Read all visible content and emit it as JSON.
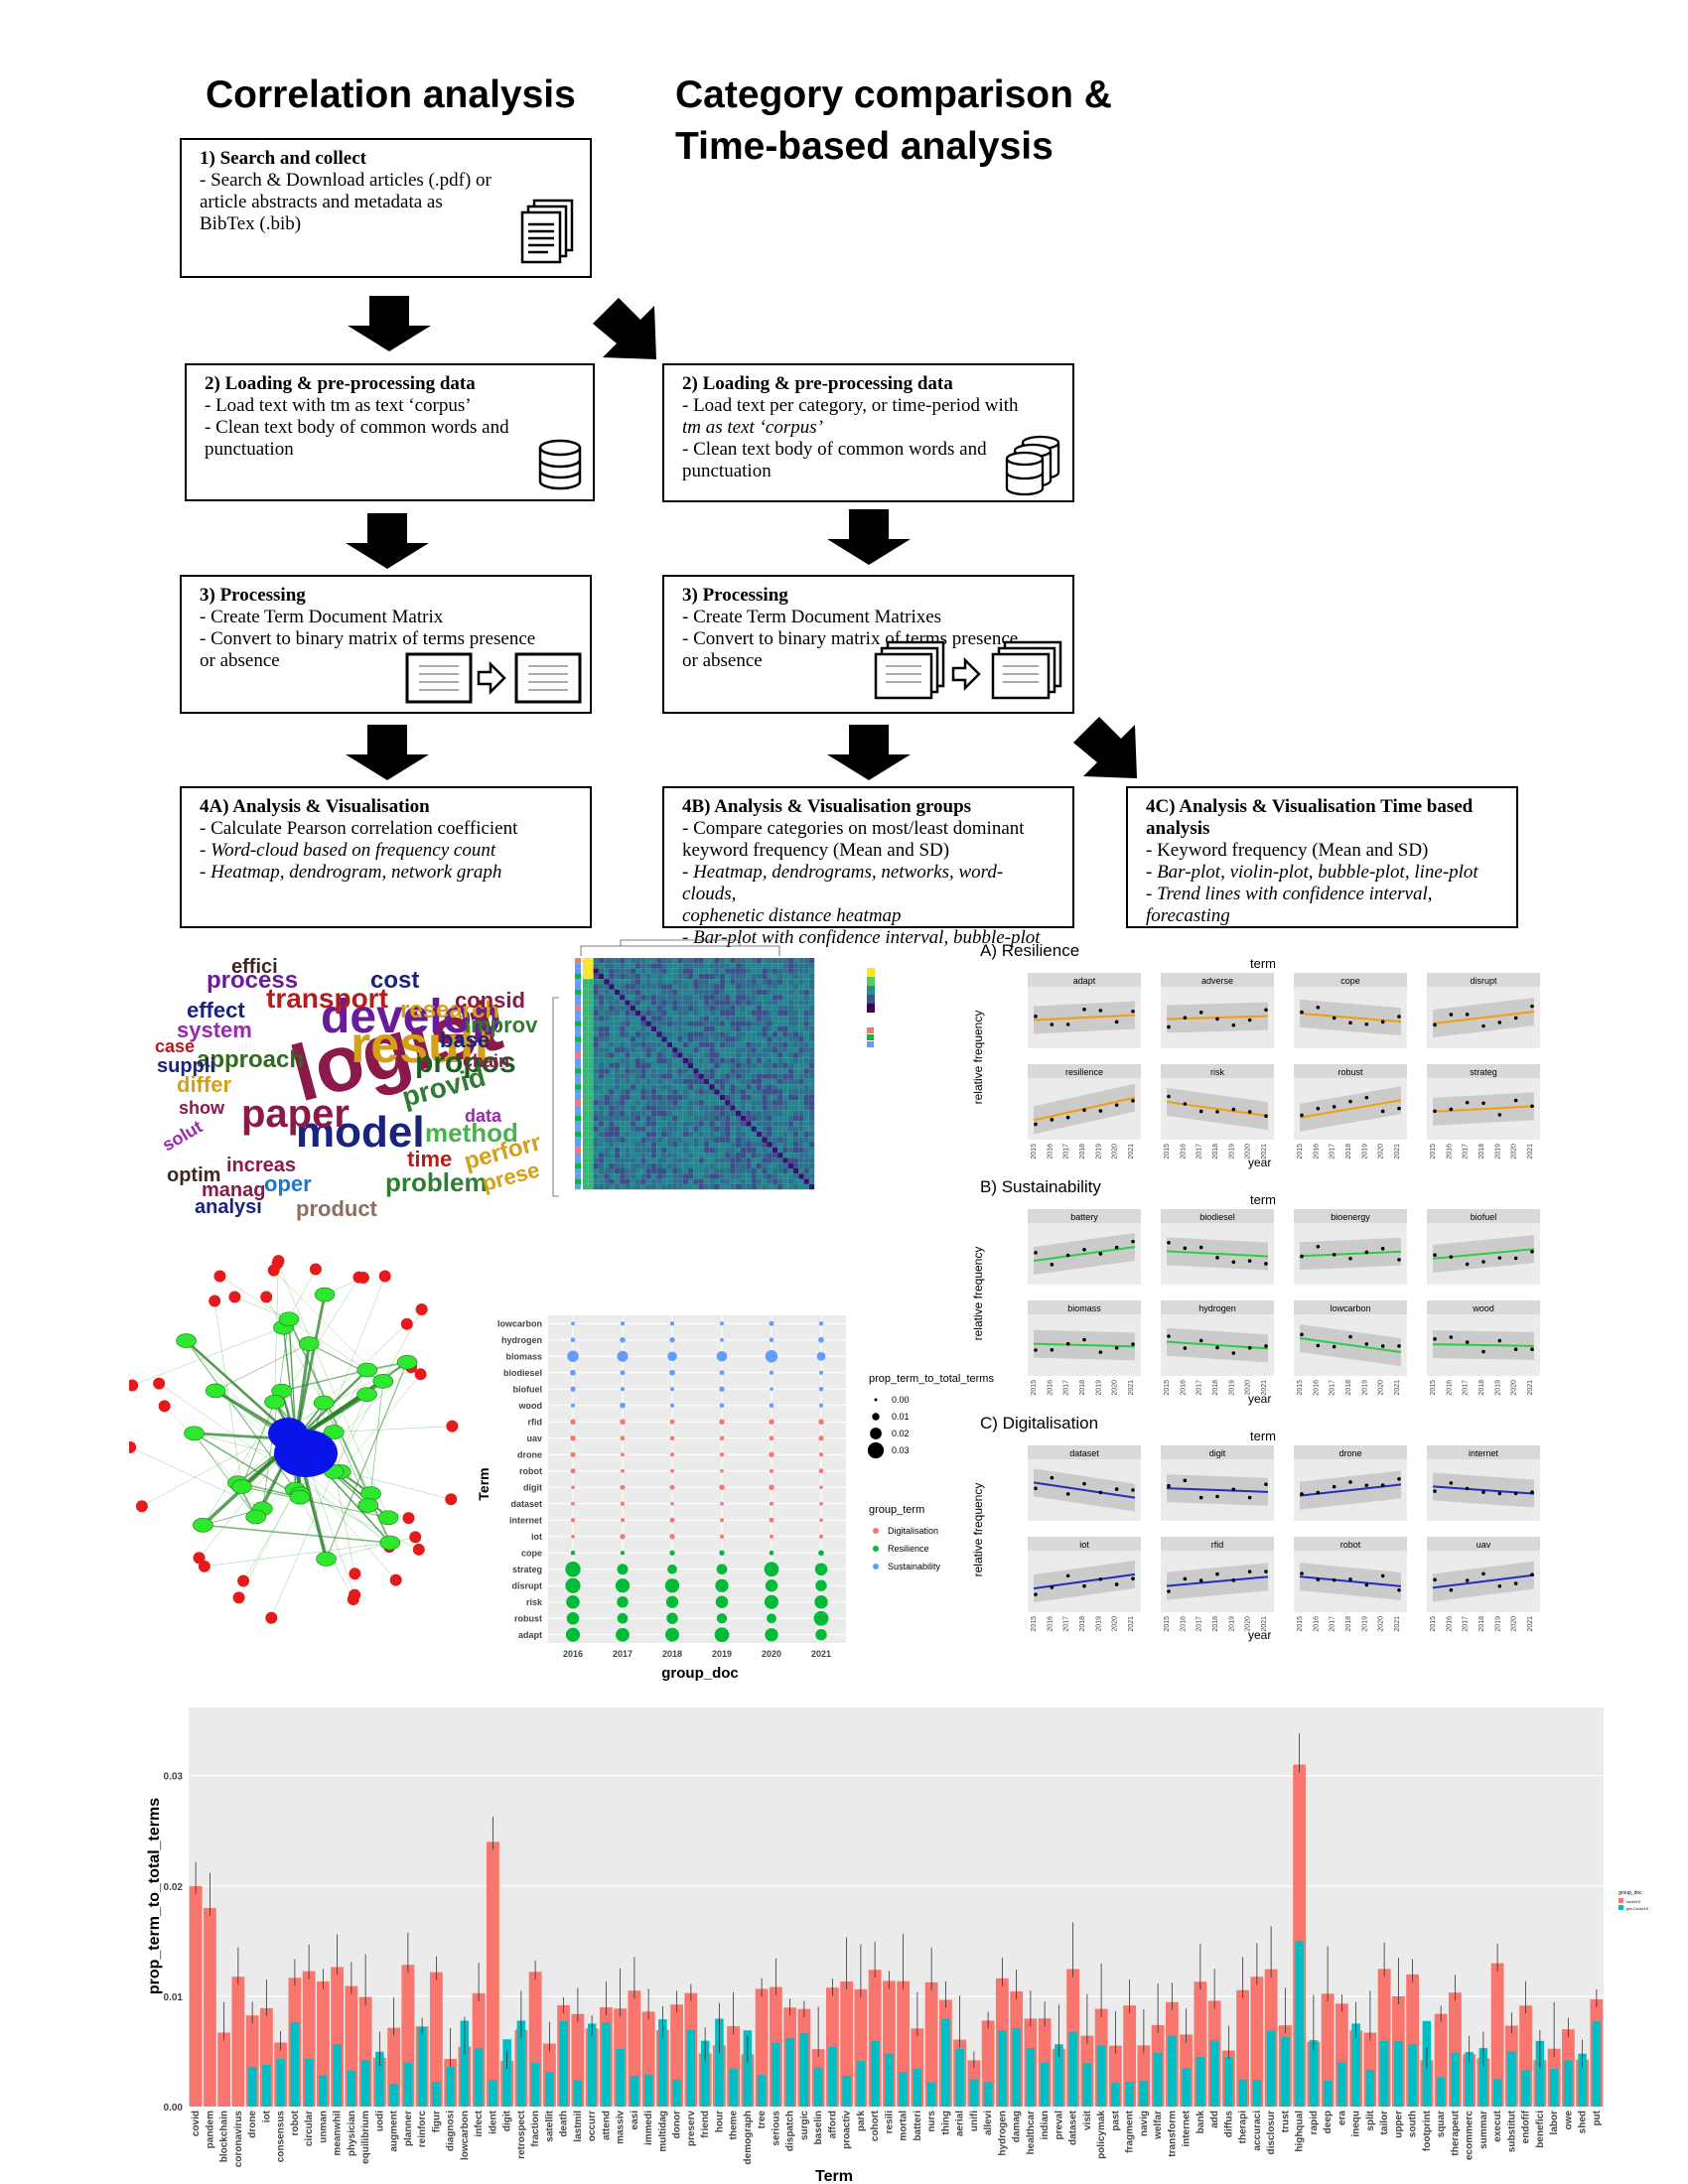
{
  "titles": {
    "left": "Correlation analysis",
    "right": "Category comparison & Time-based analysis"
  },
  "boxes": {
    "b1": {
      "title": "1) Search and collect",
      "lines": [
        "- Search & Download articles (.pdf) or",
        "article abstracts and metadata as",
        "BibTex (.bib)"
      ]
    },
    "b2a": {
      "title": "2) Loading & pre-processing data",
      "lines": [
        "- Load text with tm as text ‘corpus’",
        "- Clean text body of common words and",
        "punctuation"
      ]
    },
    "b2b": {
      "title": "2) Loading & pre-processing data",
      "lines": [
        "- Load text per category, or time-period with",
        "tm as text ‘corpus’",
        "- Clean text body of common words and",
        "punctuation"
      ]
    },
    "b3a": {
      "title": "3) Processing",
      "lines": [
        "- Create Term Document Matrix",
        "- Convert to binary matrix of terms presence",
        "or absence"
      ]
    },
    "b3b": {
      "title": "3) Processing",
      "lines": [
        "- Create Term Document Matrixes",
        "- Convert to binary matrix of terms presence",
        "or absence"
      ]
    },
    "b4a": {
      "title": "4A) Analysis & Visualisation",
      "lines": [
        "- Calculate Pearson correlation coefficient",
        "- Word-cloud based on frequency count",
        "- Heatmap, dendrogram, network graph"
      ]
    },
    "b4b": {
      "title": "4B) Analysis & Visualisation groups",
      "lines": [
        "- Compare categories on most/least dominant",
        "keyword frequency (Mean and SD)",
        "- Heatmap, dendrograms, networks, word-clouds,",
        "cophenetic distance heatmap",
        "- Bar-plot with confidence interval,  bubble-plot"
      ]
    },
    "b4c": {
      "title": "4C) Analysis & Visualisation Time based",
      "title2": "analysis",
      "lines": [
        "- Keyword frequency (Mean and SD)",
        "- Bar-plot, violin-plot, bubble-plot, line-plot",
        "- Trend lines with confidence interval, forecasting"
      ]
    }
  },
  "wordcloud": {
    "words": [
      {
        "t": "logist",
        "c": "#8b1a4a"
      },
      {
        "t": "result",
        "c": "#d4a017"
      },
      {
        "t": "develop",
        "c": "#6a1b9a"
      },
      {
        "t": "model",
        "c": "#1a237e"
      },
      {
        "t": "paper",
        "c": "#8b1a4a"
      },
      {
        "t": "propos",
        "c": "#1b5e20"
      },
      {
        "t": "provid",
        "c": "#2e7d32"
      },
      {
        "t": "method",
        "c": "#4caf50"
      },
      {
        "t": "problem",
        "c": "#2e7d32"
      },
      {
        "t": "transport",
        "c": "#b71c1c"
      },
      {
        "t": "research",
        "c": "#d4a017"
      },
      {
        "t": "process",
        "c": "#6a1b9a"
      },
      {
        "t": "approach",
        "c": "#33691e"
      },
      {
        "t": "system",
        "c": "#9c27b0"
      },
      {
        "t": "cost",
        "c": "#1a237e"
      },
      {
        "t": "base",
        "c": "#1a237e"
      },
      {
        "t": "improv",
        "c": "#2e7d32"
      },
      {
        "t": "chain",
        "c": "#8b1a4a"
      },
      {
        "t": "time",
        "c": "#b71c1c"
      },
      {
        "t": "perform",
        "c": "#d4a017"
      },
      {
        "t": "present",
        "c": "#d4a017"
      },
      {
        "t": "product",
        "c": "#8d6e63"
      },
      {
        "t": "analysi",
        "c": "#1a237e"
      },
      {
        "t": "manag",
        "c": "#8b1a4a"
      },
      {
        "t": "oper",
        "c": "#1976d2"
      },
      {
        "t": "optim",
        "c": "#3e2723"
      },
      {
        "t": "increas",
        "c": "#8b1a4a"
      },
      {
        "t": "solut",
        "c": "#9c27b0"
      },
      {
        "t": "show",
        "c": "#8b1a4a"
      },
      {
        "t": "suppli",
        "c": "#1a237e"
      },
      {
        "t": "case",
        "c": "#b71c1c"
      },
      {
        "t": "differ",
        "c": "#d4a017"
      },
      {
        "t": "effect",
        "c": "#1a237e"
      },
      {
        "t": "effici",
        "c": "#3e2723"
      },
      {
        "t": "consid",
        "c": "#8b1a4a"
      },
      {
        "t": "data",
        "c": "#9c27b0"
      }
    ]
  },
  "bubble": {
    "xlabel": "group_doc",
    "ylabel": "Term",
    "years": [
      "2016",
      "2017",
      "2018",
      "2019",
      "2020",
      "2021"
    ],
    "terms": [
      "lowcarbon",
      "hydrogen",
      "biomass",
      "biodiesel",
      "biofuel",
      "wood",
      "rfid",
      "uav",
      "drone",
      "robot",
      "digit",
      "dataset",
      "internet",
      "iot",
      "cope",
      "strateg",
      "disrupt",
      "risk",
      "robust",
      "adapt"
    ],
    "groups": [
      "Sustainability",
      "Sustainability",
      "Sustainability",
      "Sustainability",
      "Sustainability",
      "Sustainability",
      "Digitalisation",
      "Digitalisation",
      "Digitalisation",
      "Digitalisation",
      "Digitalisation",
      "Digitalisation",
      "Digitalisation",
      "Digitalisation",
      "Resilience",
      "Resilience",
      "Resilience",
      "Resilience",
      "Resilience",
      "Resilience"
    ],
    "size_legend_title": "prop_term_to_total_terms",
    "size_legend": [
      "0.00",
      "0.01",
      "0.02",
      "0.03"
    ],
    "color_legend_title": "group_term",
    "color_legend": [
      {
        "name": "Digitalisation",
        "color": "#f8766d"
      },
      {
        "name": "Resilience",
        "color": "#00ba38"
      },
      {
        "name": "Sustainability",
        "color": "#619cff"
      }
    ]
  },
  "trend": {
    "term_label": "term",
    "xlabel": "year",
    "ylabel": "relative frequency",
    "years": [
      "2015",
      "2016",
      "2017",
      "2018",
      "2019",
      "2020",
      "2021"
    ],
    "sections": [
      {
        "title": "A) Resilience",
        "color": "#f39c12",
        "facets": [
          "adapt",
          "adverse",
          "cope",
          "disrupt",
          "resilience",
          "risk",
          "robust",
          "strateg"
        ]
      },
      {
        "title": "B) Sustainability",
        "color": "#2ecc40",
        "facets": [
          "battery",
          "biodiesel",
          "bioenergy",
          "biofuel",
          "biomass",
          "hydrogen",
          "lowcarbon",
          "wood"
        ]
      },
      {
        "title": "C) Digitalisation",
        "color": "#1f2fbf",
        "facets": [
          "dataset",
          "digit",
          "drone",
          "internet",
          "iot",
          "rfid",
          "robot",
          "uav"
        ]
      }
    ]
  },
  "barplot": {
    "ylabel": "prop_term_to_total_terms",
    "xlabel": "Term",
    "yticks": [
      "0.00",
      "0.01",
      "0.02",
      "0.03"
    ],
    "legend_title": "group_doc",
    "legend": [
      "covid19",
      "pre-Covid19"
    ],
    "terms": [
      "covid",
      "pandem",
      "blockchain",
      "coronavirus",
      "drone",
      "iot",
      "consensus",
      "robot",
      "circular",
      "unman",
      "meanwhil",
      "physician",
      "equilibrium",
      "uodi",
      "augment",
      "planner",
      "reinforc",
      "figur",
      "diagnosi",
      "lowcarbon",
      "infect",
      "ident",
      "digit",
      "retrospect",
      "fraction",
      "satellit",
      "death",
      "lastmil",
      "occurr",
      "attend",
      "massiv",
      "easi",
      "immedi",
      "multidag",
      "donor",
      "preserv",
      "friend",
      "hour",
      "theme",
      "demograph",
      "tree",
      "serious",
      "dispatch",
      "surgic",
      "baselin",
      "afford",
      "proactiv",
      "park",
      "cohort",
      "resili",
      "mortal",
      "batteri",
      "nurs",
      "thing",
      "aerial",
      "unifi",
      "allevi",
      "hydrogen",
      "damag",
      "healthcar",
      "indian",
      "preval",
      "dataset",
      "visit",
      "policymak",
      "past",
      "fragment",
      "navig",
      "welfar",
      "transform",
      "internet",
      "bank",
      "add",
      "diffus",
      "therapi",
      "accuraci",
      "disclosur",
      "trust",
      "highqual",
      "rapid",
      "deep",
      "era",
      "inequ",
      "split",
      "tailor",
      "upper",
      "south",
      "footprint",
      "squar",
      "therapeut",
      "ecommerc",
      "summar",
      "execut",
      "substitut",
      "endofif",
      "benefici",
      "labor",
      "owe",
      "shed",
      "put"
    ]
  }
}
